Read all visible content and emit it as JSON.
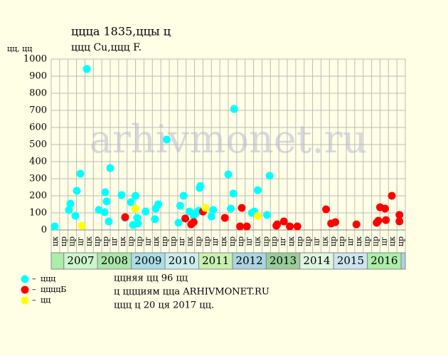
{
  "chart_data": {
    "type": "scatter",
    "title": "ццца 1835,ццы ц",
    "subtitle": "ццц Cu,ццц F.",
    "y_label": "цц, цц",
    "watermark": "arhivmonet.ru",
    "categories": [
      "цк",
      "цр",
      "цр",
      "цг",
      "цк",
      "цр",
      "цр",
      "цг",
      "цк",
      "цр",
      "цр",
      "цг",
      "цк",
      "цр",
      "цр",
      "цг",
      "цк",
      "цр",
      "цр",
      "цг",
      "цк",
      "цр",
      "цр",
      "цг",
      "цк",
      "цр",
      "цр",
      "цг",
      "цк",
      "цр",
      "цр",
      "цг",
      "цк",
      "цр",
      "цр",
      "цг",
      "цк",
      "цр",
      "цр",
      "цг",
      "цк",
      "цр"
    ],
    "years": [
      "2007",
      "2008",
      "2009",
      "2010",
      "2011",
      "2012",
      "2013",
      "2014",
      "2015",
      "2016"
    ],
    "year_colors": [
      "#ccf5cc",
      "#aae6aa",
      "#aadde6",
      "#ccecec",
      "#c8f0b0",
      "#aad4e0",
      "#99cc99",
      "#dff5df",
      "#cce4ee",
      "#aaeeaa"
    ],
    "xlim": [
      0,
      42
    ],
    "ylim": [
      0,
      1000
    ],
    "yticks": [
      0,
      100,
      200,
      300,
      400,
      500,
      600,
      700,
      800,
      900,
      1000
    ],
    "grid": true,
    "series": [
      {
        "name": "ццц",
        "color": "#00ffff",
        "x": [
          0.42,
          2.1,
          2.28,
          2.87,
          3.04,
          3.46,
          4.22,
          5.65,
          6.41,
          6.33,
          6.58,
          6.83,
          7.0,
          8.35,
          8.77,
          9.45,
          9.7,
          10.0,
          10.2,
          10.3,
          11.2,
          12.3,
          12.4,
          12.7,
          13.7,
          15.1,
          15.3,
          15.7,
          16.4,
          16.9,
          17.2,
          17.5,
          17.6,
          17.7,
          19.0,
          19.2,
          21.0,
          21.3,
          21.6,
          21.7,
          23.8,
          24.1,
          24.5,
          25.6,
          25.9
        ],
        "values": [
          21,
          117,
          154,
          83,
          229,
          329,
          942,
          117,
          221,
          104,
          167,
          50,
          362,
          204,
          71,
          163,
          29,
          200,
          71,
          38,
          108,
          63,
          125,
          150,
          529,
          42,
          142,
          200,
          108,
          83,
          100,
          113,
          246,
          258,
          79,
          117,
          325,
          125,
          213,
          708,
          100,
          108,
          233,
          88,
          317
        ]
      },
      {
        "name": "ццццБ",
        "color": "#ff0000",
        "x": [
          8.77,
          15.9,
          16.6,
          16.9,
          18.0,
          20.6,
          22.4,
          22.6,
          23.2,
          26.7,
          26.8,
          27.6,
          28.3,
          29.2,
          32.6,
          33.2,
          33.7,
          36.2,
          38.6,
          38.8,
          39.0,
          39.6,
          39.7,
          40.4,
          41.3,
          41.3
        ],
        "values": [
          75,
          67,
          33,
          46,
          108,
          71,
          21,
          129,
          21,
          25,
          33,
          50,
          21,
          21,
          121,
          38,
          46,
          33,
          42,
          54,
          133,
          125,
          58,
          200,
          88,
          50
        ]
      },
      {
        "name": "цц",
        "color": "#ffff00",
        "x": [
          3.63,
          10.0,
          18.3,
          24.5
        ],
        "values": [
          25,
          125,
          129,
          83
        ]
      }
    ],
    "notes": [
      "ццняя цц 96 цц",
      "ц ццциям ццa ARHIVMONET.RU",
      "ццц ц 20 ця 2017 цц."
    ]
  }
}
